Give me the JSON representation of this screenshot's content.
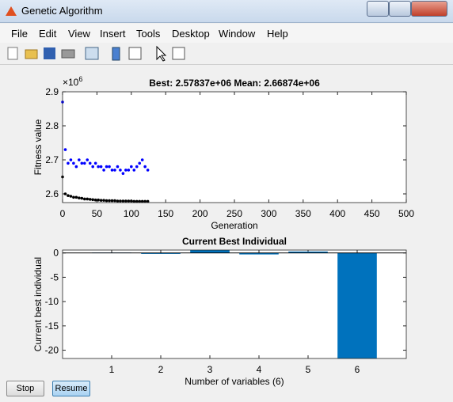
{
  "window": {
    "title": "Genetic Algorithm",
    "menu": [
      "File",
      "Edit",
      "View",
      "Insert",
      "Tools",
      "Desktop",
      "Window",
      "Help"
    ]
  },
  "buttons": [
    "Stop",
    "Resume"
  ],
  "chart_data": [
    {
      "type": "scatter",
      "title": "Best: 2.57837e+06 Mean: 2.66874e+06",
      "xlabel": "Generation",
      "ylabel": "Fitness value",
      "y_multiplier": {
        "base": "×10",
        "power": "6"
      },
      "x": [
        0,
        4,
        8,
        12,
        16,
        20,
        24,
        28,
        32,
        36,
        40,
        44,
        48,
        52,
        56,
        60,
        64,
        68,
        72,
        76,
        80,
        84,
        88,
        92,
        96,
        100,
        104,
        108,
        112,
        116,
        120,
        124
      ],
      "series": [
        {
          "name": "Best",
          "color": "#000000",
          "values": [
            2.65,
            2.6,
            2.595,
            2.593,
            2.59,
            2.59,
            2.588,
            2.587,
            2.585,
            2.585,
            2.584,
            2.583,
            2.582,
            2.582,
            2.581,
            2.581,
            2.58,
            2.58,
            2.58,
            2.58,
            2.579,
            2.579,
            2.579,
            2.579,
            2.579,
            2.579,
            2.578,
            2.578,
            2.578,
            2.578,
            2.578,
            2.578
          ]
        },
        {
          "name": "Mean",
          "color": "#0000ff",
          "values": [
            2.87,
            2.73,
            2.69,
            2.7,
            2.69,
            2.68,
            2.7,
            2.69,
            2.69,
            2.7,
            2.69,
            2.68,
            2.69,
            2.68,
            2.68,
            2.67,
            2.68,
            2.68,
            2.67,
            2.67,
            2.68,
            2.67,
            2.66,
            2.67,
            2.67,
            2.68,
            2.67,
            2.68,
            2.69,
            2.7,
            2.68,
            2.67
          ]
        }
      ],
      "xlim": [
        0,
        500
      ],
      "xticks": [
        0,
        50,
        100,
        150,
        200,
        250,
        300,
        350,
        400,
        450,
        500
      ],
      "ylim": [
        2.5744,
        2.9
      ],
      "yticks": [
        2.6,
        2.7,
        2.8,
        2.9
      ]
    },
    {
      "type": "bar",
      "title": "Current Best Individual",
      "xlabel": "Number of variables (6)",
      "ylabel": "Current best individual",
      "x": [
        1,
        2,
        3,
        4,
        5,
        6
      ],
      "values": [
        0.1,
        -0.2,
        0.6,
        -0.3,
        0.3,
        -21.7
      ],
      "color": "#0072bd",
      "xlim": [
        0,
        7
      ],
      "xticks": [
        1,
        2,
        3,
        4,
        5,
        6
      ],
      "ylim": [
        -21.7,
        0.6
      ],
      "yticks": [
        -20,
        -15,
        -10,
        -5,
        0
      ]
    }
  ]
}
